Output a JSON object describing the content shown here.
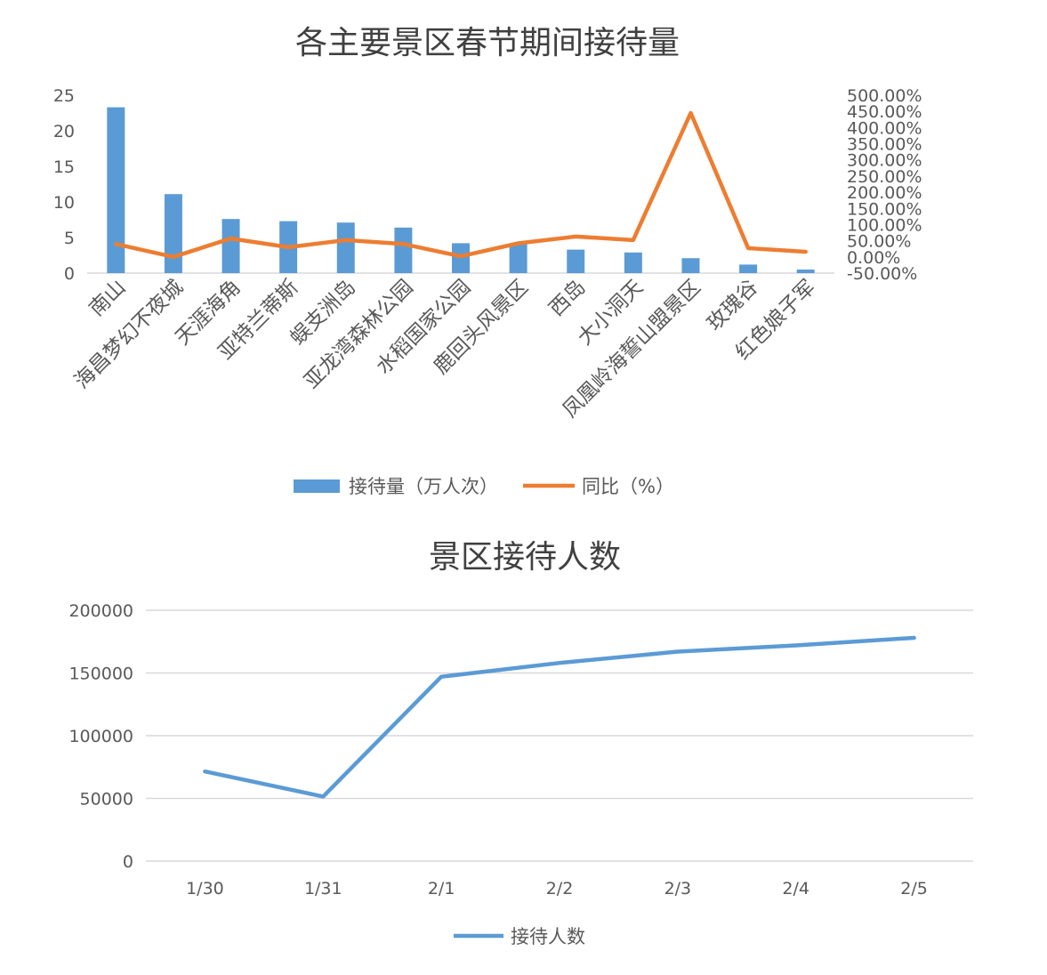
{
  "chart_data": [
    {
      "type": "bar",
      "title": "各主要景区春节期间接待量",
      "categories": [
        "南山",
        "海昌梦幻不夜城",
        "天涯海角",
        "亚特兰蒂斯",
        "蜈支洲岛",
        "亚龙湾森林公园",
        "水稻国家公园",
        "鹿回头风景区",
        "西岛",
        "大小洞天",
        "凤凰岭海誓山盟景区",
        "玫瑰谷",
        "红色娘子军"
      ],
      "series": [
        {
          "name": "接待量（万人次）",
          "type": "bar",
          "axis": "left",
          "color": "#5B9BD5",
          "values": [
            23.3,
            11.1,
            7.6,
            7.3,
            7.1,
            6.4,
            4.2,
            4.1,
            3.3,
            2.9,
            2.1,
            1.2,
            0.5
          ]
        },
        {
          "name": "同比（%）",
          "type": "line",
          "axis": "right",
          "color": "#ED7D31",
          "values": [
            0.4,
            0.0,
            0.57,
            0.3,
            0.52,
            0.4,
            0.02,
            0.42,
            0.63,
            0.52,
            4.45,
            0.27,
            0.16
          ]
        }
      ],
      "ylim_left": [
        0,
        25
      ],
      "yticks_left": [
        "25",
        "20",
        "15",
        "10",
        "5",
        "0"
      ],
      "ylim_right": [
        -0.5,
        5.0
      ],
      "yticks_right": [
        "500.00%",
        "450.00%",
        "400.00%",
        "350.00%",
        "300.00%",
        "250.00%",
        "200.00%",
        "150.00%",
        "100.00%",
        "50.00%",
        "0.00%",
        "-50.00%"
      ],
      "grid": false,
      "legend": "bottom"
    },
    {
      "type": "line",
      "title": "景区接待人数",
      "x": [
        "1/30",
        "1/31",
        "2/1",
        "2/2",
        "2/3",
        "2/4",
        "2/5"
      ],
      "series": [
        {
          "name": "接待人数",
          "color": "#5B9BD5",
          "values": [
            71500,
            51500,
            147000,
            158000,
            167000,
            172000,
            178000
          ]
        }
      ],
      "ylim": [
        0,
        200000
      ],
      "yticks": [
        "200000",
        "150000",
        "100000",
        "50000",
        "0"
      ],
      "grid": true,
      "legend": "bottom"
    }
  ]
}
